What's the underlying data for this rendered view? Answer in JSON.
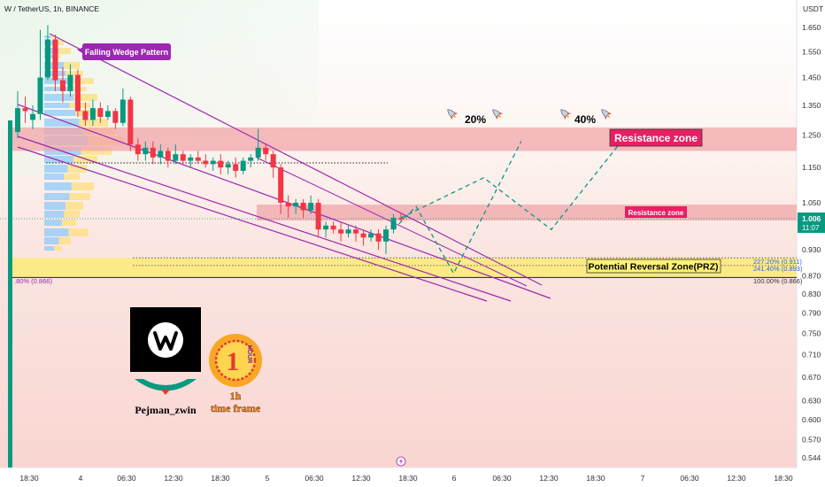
{
  "header": {
    "symbol": "W / TetherUS, 1h, BINANCE",
    "currency": "USDT"
  },
  "colors": {
    "up": "#089981",
    "down": "#f23645",
    "wedge": "#9c27b0",
    "resistance_fill": "#f7b4b6",
    "prz_fill": "#fbef7e",
    "label_red": "#e91e63",
    "label_purple": "#9c27b0",
    "price_tag": "#089981"
  },
  "annotations": {
    "falling_wedge": "Falling Wedge Pattern",
    "resistance_zone_upper": "Resistance zone",
    "resistance_zone_lower": "Resistance zone",
    "prz": "Potential Reversal Zone(PRZ)",
    "target_20": "20%",
    "target_40": "40%",
    "fib_227": "227.20% (0.911)",
    "fib_241": "241.40% (0.893)",
    "fib_100": "100.00% (0.866)",
    "fib_left": ".80% (0.866)",
    "author": "Pejman_zwin",
    "timeframe_top": "1h",
    "timeframe_bottom": "time frame",
    "badge_number": "1",
    "badge_word": "HOUR"
  },
  "price_tag": {
    "price": "1.006",
    "countdown": "11:07"
  },
  "chart_data": {
    "type": "candlestick",
    "y_axis": {
      "scale": "log",
      "ticks": [
        "1.650",
        "1.550",
        "1.450",
        "1.350",
        "1.250",
        "1.150",
        "1.050",
        "0.930",
        "0.870",
        "0.830",
        "0.790",
        "0.750",
        "0.710",
        "0.670",
        "0.630",
        "0.600",
        "0.570",
        "0.544"
      ]
    },
    "x_axis": {
      "ticks": [
        "18:30",
        "4",
        "06:30",
        "12:30",
        "18:30",
        "5",
        "06:30",
        "12:30",
        "18:30",
        "6",
        "06:30",
        "12:30",
        "18:30",
        "7",
        "06:30",
        "12:30",
        "18:30"
      ]
    },
    "zones": {
      "resistance_upper": [
        1.2,
        1.275
      ],
      "resistance_lower": [
        1.003,
        1.045
      ],
      "prz": [
        0.866,
        0.911
      ]
    },
    "current_price": 1.006,
    "candles": [
      [
        1.26,
        1.34,
        1.4,
        1.24
      ],
      [
        1.34,
        1.33,
        1.38,
        1.29
      ],
      [
        1.3,
        1.32,
        1.35,
        1.27
      ],
      [
        1.32,
        1.45,
        1.64,
        1.3
      ],
      [
        1.45,
        1.6,
        1.66,
        1.44
      ],
      [
        1.6,
        1.44,
        1.62,
        1.4
      ],
      [
        1.44,
        1.4,
        1.49,
        1.36
      ],
      [
        1.4,
        1.46,
        1.5,
        1.38
      ],
      [
        1.46,
        1.33,
        1.48,
        1.31
      ],
      [
        1.33,
        1.3,
        1.36,
        1.28
      ],
      [
        1.3,
        1.34,
        1.37,
        1.28
      ],
      [
        1.34,
        1.31,
        1.36,
        1.29
      ],
      [
        1.31,
        1.33,
        1.35,
        1.3
      ],
      [
        1.33,
        1.29,
        1.34,
        1.27
      ],
      [
        1.29,
        1.37,
        1.41,
        1.28
      ],
      [
        1.37,
        1.22,
        1.38,
        1.2
      ],
      [
        1.22,
        1.19,
        1.24,
        1.17
      ],
      [
        1.19,
        1.21,
        1.23,
        1.17
      ],
      [
        1.21,
        1.18,
        1.23,
        1.16
      ],
      [
        1.18,
        1.2,
        1.22,
        1.16
      ],
      [
        1.2,
        1.17,
        1.21,
        1.15
      ],
      [
        1.17,
        1.19,
        1.22,
        1.16
      ],
      [
        1.19,
        1.17,
        1.2,
        1.16
      ],
      [
        1.17,
        1.18,
        1.19,
        1.15
      ],
      [
        1.18,
        1.17,
        1.2,
        1.16
      ],
      [
        1.17,
        1.16,
        1.19,
        1.15
      ],
      [
        1.16,
        1.17,
        1.18,
        1.14
      ],
      [
        1.17,
        1.15,
        1.19,
        1.13
      ],
      [
        1.15,
        1.16,
        1.17,
        1.13
      ],
      [
        1.16,
        1.14,
        1.18,
        1.12
      ],
      [
        1.14,
        1.17,
        1.18,
        1.13
      ],
      [
        1.17,
        1.18,
        1.19,
        1.15
      ],
      [
        1.18,
        1.21,
        1.27,
        1.17
      ],
      [
        1.21,
        1.19,
        1.22,
        1.17
      ],
      [
        1.19,
        1.15,
        1.2,
        1.12
      ],
      [
        1.15,
        1.05,
        1.16,
        1.02
      ],
      [
        1.05,
        1.04,
        1.07,
        1.01
      ],
      [
        1.04,
        1.05,
        1.06,
        1.02
      ],
      [
        1.05,
        1.03,
        1.06,
        1.01
      ],
      [
        1.03,
        1.05,
        1.07,
        1.02
      ],
      [
        1.05,
        0.98,
        1.06,
        0.96
      ],
      [
        0.98,
        0.99,
        1.0,
        0.96
      ],
      [
        0.99,
        0.98,
        1.0,
        0.97
      ],
      [
        0.98,
        0.97,
        1.0,
        0.95
      ],
      [
        0.97,
        0.98,
        0.99,
        0.96
      ],
      [
        0.98,
        0.97,
        0.99,
        0.95
      ],
      [
        0.97,
        0.96,
        0.98,
        0.94
      ],
      [
        0.96,
        0.97,
        0.98,
        0.95
      ],
      [
        0.97,
        0.95,
        0.98,
        0.93
      ],
      [
        0.95,
        0.98,
        0.99,
        0.92
      ],
      [
        0.98,
        1.01,
        1.02,
        0.97
      ],
      [
        1.01,
        1.006,
        1.02,
        1.0
      ]
    ],
    "projections": [
      [
        [
          0.98,
          "c50"
        ],
        [
          1.04,
          "p53"
        ],
        [
          0.875,
          "p58"
        ],
        [
          1.23,
          "p67"
        ]
      ],
      [
        [
          1.01,
          "c51"
        ],
        [
          1.12,
          "p62"
        ],
        [
          0.98,
          "p71"
        ],
        [
          1.22,
          "p80"
        ]
      ]
    ]
  }
}
